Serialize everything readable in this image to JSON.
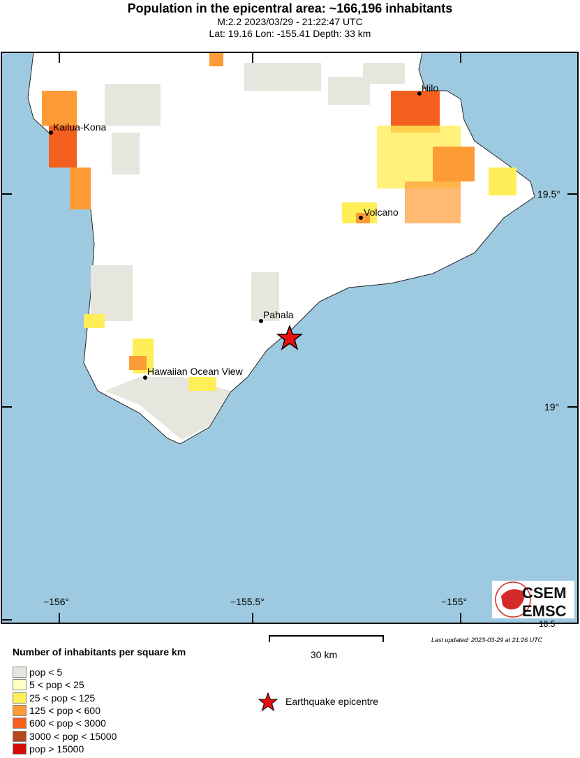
{
  "header": {
    "title": "Population in the epicentral area: ~166,196 inhabitants",
    "line1": "M:2.2 2023/03/29 - 21:22:47 UTC",
    "line2": "Lat: 19.16 Lon: -155.41 Depth: 33 km"
  },
  "map": {
    "sea_color": "#9ecae1",
    "land_color": "#ffffff",
    "cities": [
      {
        "name": "Hilo"
      },
      {
        "name": "Kailua-Kona"
      },
      {
        "name": "Volcano"
      },
      {
        "name": "Pahala"
      },
      {
        "name": "Hawaiian Ocean View"
      }
    ],
    "lon_labels": [
      "−156°",
      "−155.5°",
      "−155°"
    ],
    "lat_labels": [
      "19.5°",
      "19°",
      "18.5"
    ],
    "epicenter_icon": "red-star-icon"
  },
  "logo": {
    "text1": "CSEM",
    "text2": "EMSC"
  },
  "last_updated": "Last updated: 2023-03-29 at 21:26 UTC",
  "scale": {
    "label": "30 km"
  },
  "legend": {
    "title": "Number of inhabitants per square km",
    "items": [
      {
        "label": "pop < 5",
        "color": "#e6e6de"
      },
      {
        "label": "5 < pop < 25",
        "color": "#ffffc4"
      },
      {
        "label": "25 < pop < 125",
        "color": "#ffee58"
      },
      {
        "label": "125 < pop < 600",
        "color": "#fd9b36"
      },
      {
        "label": "600 < pop < 3000",
        "color": "#f3601e"
      },
      {
        "label": "3000 < pop < 15000",
        "color": "#b5471a"
      },
      {
        "label": "pop > 15000",
        "color": "#d50b0b"
      }
    ],
    "epicentre_label": "Earthquake epicentre"
  }
}
